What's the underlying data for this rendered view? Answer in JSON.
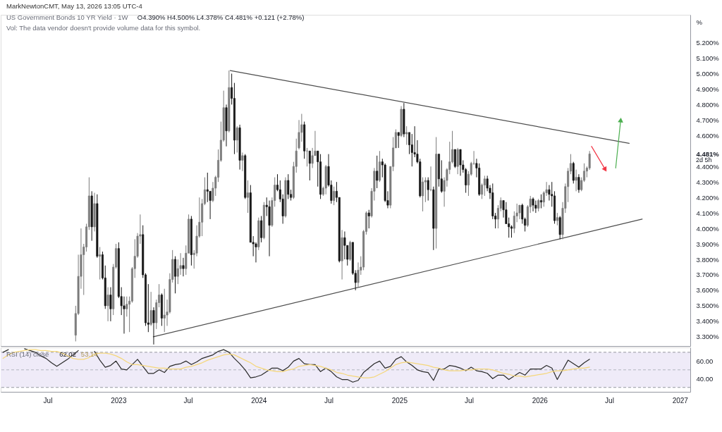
{
  "chart_data": [
    {
      "type": "candlestick",
      "title": "US Government Bonds 10 YR Yield · 1W",
      "ylabel": "%",
      "x": [
        "2022-09-12",
        "2022-09-19",
        "2022-09-26",
        "2022-10-03",
        "2022-10-10",
        "2022-10-17",
        "2022-10-24",
        "2022-10-31",
        "2022-11-07",
        "2022-11-14",
        "2022-11-21",
        "2022-11-28",
        "2022-12-05",
        "2022-12-12",
        "2022-12-19",
        "2022-12-26",
        "2023-01-02",
        "2023-01-09",
        "2023-01-16",
        "2023-01-23",
        "2023-01-30",
        "2023-02-06",
        "2023-02-13",
        "2023-02-20",
        "2023-02-27",
        "2023-03-06",
        "2023-03-13",
        "2023-03-20",
        "2023-03-27",
        "2023-04-03",
        "2023-04-10",
        "2023-04-17",
        "2023-04-24",
        "2023-05-01",
        "2023-05-08",
        "2023-05-15",
        "2023-05-22",
        "2023-05-29",
        "2023-06-05",
        "2023-06-12",
        "2023-06-19",
        "2023-06-26",
        "2023-07-03",
        "2023-07-10",
        "2023-07-17",
        "2023-07-24",
        "2023-07-31",
        "2023-08-07",
        "2023-08-14",
        "2023-08-21",
        "2023-08-28",
        "2023-09-04",
        "2023-09-11",
        "2023-09-18",
        "2023-09-25",
        "2023-10-02",
        "2023-10-09",
        "2023-10-16",
        "2023-10-23",
        "2023-10-30",
        "2023-11-06",
        "2023-11-13",
        "2023-11-20",
        "2023-11-27",
        "2023-12-04",
        "2023-12-11",
        "2023-12-18",
        "2023-12-25",
        "2024-01-01",
        "2024-01-08",
        "2024-01-15",
        "2024-01-22",
        "2024-01-29",
        "2024-02-05",
        "2024-02-12",
        "2024-02-19",
        "2024-02-26",
        "2024-03-04",
        "2024-03-11",
        "2024-03-18",
        "2024-03-25",
        "2024-04-01",
        "2024-04-08",
        "2024-04-15",
        "2024-04-22",
        "2024-04-29",
        "2024-05-06",
        "2024-05-13",
        "2024-05-20",
        "2024-05-27",
        "2024-06-03",
        "2024-06-10",
        "2024-06-17",
        "2024-06-24",
        "2024-07-01",
        "2024-07-08",
        "2024-07-15",
        "2024-07-22",
        "2024-07-29",
        "2024-08-05",
        "2024-08-12",
        "2024-08-19",
        "2024-08-26",
        "2024-09-02",
        "2024-09-09",
        "2024-09-16",
        "2024-09-23",
        "2024-09-30",
        "2024-10-07",
        "2024-10-14",
        "2024-10-21",
        "2024-10-28",
        "2024-11-04",
        "2024-11-11",
        "2024-11-18",
        "2024-11-25",
        "2024-12-02",
        "2024-12-09",
        "2024-12-16",
        "2024-12-23",
        "2024-12-30",
        "2025-01-06",
        "2025-01-13",
        "2025-01-20",
        "2025-01-27",
        "2025-02-03",
        "2025-02-10",
        "2025-02-17",
        "2025-02-24",
        "2025-03-03",
        "2025-03-10",
        "2025-03-17",
        "2025-03-24",
        "2025-03-31",
        "2025-04-07",
        "2025-04-14",
        "2025-04-21",
        "2025-04-28",
        "2025-05-05",
        "2025-05-12",
        "2025-05-19",
        "2025-05-26",
        "2025-06-02",
        "2025-06-09",
        "2025-06-16",
        "2025-06-23",
        "2025-06-30",
        "2025-07-07",
        "2025-07-14",
        "2025-07-21",
        "2025-07-28",
        "2025-08-04",
        "2025-08-11",
        "2025-08-18",
        "2025-08-25",
        "2025-09-01",
        "2025-09-08",
        "2025-09-15",
        "2025-09-22",
        "2025-09-29",
        "2025-10-06",
        "2025-10-13",
        "2025-10-20",
        "2025-10-27",
        "2025-11-03",
        "2025-11-10",
        "2025-11-17",
        "2025-11-24",
        "2025-12-01",
        "2025-12-08",
        "2025-12-15",
        "2025-12-22",
        "2025-12-29",
        "2026-01-05",
        "2026-01-12",
        "2026-01-19",
        "2026-01-26",
        "2026-02-02",
        "2026-02-09",
        "2026-02-16",
        "2026-02-23",
        "2026-03-02",
        "2026-03-09",
        "2026-03-16",
        "2026-03-23",
        "2026-03-30",
        "2026-04-06",
        "2026-04-13",
        "2026-04-20",
        "2026-04-27",
        "2026-05-04",
        "2026-05-11"
      ],
      "ohlc": [
        [
          3.31,
          3.5,
          3.27,
          3.45
        ],
        [
          3.45,
          3.83,
          3.44,
          3.69
        ],
        [
          3.69,
          4.0,
          3.61,
          3.83
        ],
        [
          3.83,
          3.9,
          3.57,
          3.88
        ],
        [
          3.88,
          4.03,
          3.85,
          4.01
        ],
        [
          4.01,
          4.33,
          3.99,
          4.21
        ],
        [
          4.21,
          4.24,
          3.92,
          4.01
        ],
        [
          4.01,
          4.23,
          3.98,
          4.16
        ],
        [
          4.16,
          4.22,
          3.81,
          3.82
        ],
        [
          3.82,
          3.88,
          3.67,
          3.83
        ],
        [
          3.83,
          3.85,
          3.67,
          3.68
        ],
        [
          3.68,
          3.76,
          3.48,
          3.5
        ],
        [
          3.5,
          3.62,
          3.4,
          3.57
        ],
        [
          3.57,
          3.62,
          3.4,
          3.48
        ],
        [
          3.48,
          3.77,
          3.44,
          3.75
        ],
        [
          3.75,
          3.9,
          3.74,
          3.87
        ],
        [
          3.87,
          3.91,
          3.55,
          3.56
        ],
        [
          3.56,
          3.62,
          3.44,
          3.5
        ],
        [
          3.5,
          3.56,
          3.32,
          3.48
        ],
        [
          3.48,
          3.56,
          3.43,
          3.51
        ],
        [
          3.51,
          3.56,
          3.33,
          3.53
        ],
        [
          3.53,
          3.75,
          3.52,
          3.74
        ],
        [
          3.74,
          3.93,
          3.68,
          3.82
        ],
        [
          3.82,
          3.97,
          3.81,
          3.95
        ],
        [
          3.95,
          4.09,
          3.9,
          3.96
        ],
        [
          3.96,
          4.02,
          3.68,
          3.7
        ],
        [
          3.7,
          3.71,
          3.37,
          3.39
        ],
        [
          3.39,
          3.64,
          3.33,
          3.38
        ],
        [
          3.38,
          3.59,
          3.37,
          3.47
        ],
        [
          3.47,
          3.49,
          3.25,
          3.39
        ],
        [
          3.39,
          3.54,
          3.35,
          3.52
        ],
        [
          3.52,
          3.64,
          3.49,
          3.57
        ],
        [
          3.57,
          3.58,
          3.37,
          3.42
        ],
        [
          3.42,
          3.61,
          3.33,
          3.44
        ],
        [
          3.44,
          3.54,
          3.37,
          3.46
        ],
        [
          3.46,
          3.71,
          3.45,
          3.67
        ],
        [
          3.67,
          3.86,
          3.65,
          3.8
        ],
        [
          3.8,
          3.82,
          3.58,
          3.69
        ],
        [
          3.69,
          3.8,
          3.64,
          3.74
        ],
        [
          3.74,
          3.84,
          3.7,
          3.76
        ],
        [
          3.76,
          3.81,
          3.69,
          3.74
        ],
        [
          3.74,
          3.89,
          3.7,
          3.84
        ],
        [
          3.84,
          4.09,
          3.84,
          4.06
        ],
        [
          4.06,
          4.08,
          3.76,
          3.83
        ],
        [
          3.83,
          3.86,
          3.74,
          3.84
        ],
        [
          3.84,
          4.02,
          3.82,
          3.95
        ],
        [
          3.95,
          4.2,
          3.94,
          4.04
        ],
        [
          4.04,
          4.19,
          3.95,
          4.16
        ],
        [
          4.16,
          4.33,
          4.15,
          4.25
        ],
        [
          4.25,
          4.36,
          4.17,
          4.24
        ],
        [
          4.24,
          4.24,
          4.06,
          4.18
        ],
        [
          4.18,
          4.3,
          4.17,
          4.26
        ],
        [
          4.26,
          4.34,
          4.21,
          4.33
        ],
        [
          4.33,
          4.51,
          4.3,
          4.44
        ],
        [
          4.44,
          4.69,
          4.43,
          4.57
        ],
        [
          4.57,
          4.89,
          4.56,
          4.78
        ],
        [
          4.78,
          4.8,
          4.53,
          4.63
        ],
        [
          4.63,
          5.02,
          4.62,
          4.91
        ],
        [
          4.91,
          5.0,
          4.8,
          4.84
        ],
        [
          4.84,
          4.94,
          4.48,
          4.57
        ],
        [
          4.57,
          4.66,
          4.49,
          4.65
        ],
        [
          4.65,
          4.67,
          4.38,
          4.44
        ],
        [
          4.44,
          4.49,
          4.37,
          4.47
        ],
        [
          4.47,
          4.48,
          4.19,
          4.2
        ],
        [
          4.2,
          4.31,
          4.1,
          4.23
        ],
        [
          4.23,
          4.28,
          3.91,
          3.91
        ],
        [
          3.91,
          3.95,
          3.82,
          3.9
        ],
        [
          3.9,
          3.91,
          3.78,
          3.88
        ],
        [
          3.88,
          4.07,
          3.86,
          4.05
        ],
        [
          4.05,
          4.08,
          3.91,
          3.94
        ],
        [
          3.94,
          4.17,
          3.93,
          4.15
        ],
        [
          4.15,
          4.2,
          4.08,
          4.14
        ],
        [
          4.14,
          4.18,
          3.82,
          4.02
        ],
        [
          4.02,
          4.2,
          4.01,
          4.18
        ],
        [
          4.18,
          4.33,
          4.14,
          4.28
        ],
        [
          4.28,
          4.35,
          4.24,
          4.25
        ],
        [
          4.25,
          4.31,
          4.17,
          4.19
        ],
        [
          4.19,
          4.22,
          4.03,
          4.08
        ],
        [
          4.08,
          4.33,
          4.07,
          4.31
        ],
        [
          4.31,
          4.35,
          4.19,
          4.22
        ],
        [
          4.22,
          4.25,
          4.18,
          4.2
        ],
        [
          4.2,
          4.43,
          4.19,
          4.4
        ],
        [
          4.4,
          4.58,
          4.36,
          4.5
        ],
        [
          4.52,
          4.7,
          4.51,
          4.62
        ],
        [
          4.62,
          4.74,
          4.56,
          4.67
        ],
        [
          4.67,
          4.69,
          4.45,
          4.5
        ],
        [
          4.5,
          4.52,
          4.4,
          4.5
        ],
        [
          4.5,
          4.5,
          4.31,
          4.42
        ],
        [
          4.42,
          4.52,
          4.39,
          4.47
        ],
        [
          4.47,
          4.63,
          4.47,
          4.5
        ],
        [
          4.5,
          4.5,
          4.27,
          4.43
        ],
        [
          4.43,
          4.48,
          4.19,
          4.22
        ],
        [
          4.22,
          4.27,
          4.21,
          4.26
        ],
        [
          4.26,
          4.41,
          4.22,
          4.4
        ],
        [
          4.4,
          4.48,
          4.27,
          4.28
        ],
        [
          4.28,
          4.31,
          4.16,
          4.18
        ],
        [
          4.18,
          4.27,
          4.15,
          4.24
        ],
        [
          4.24,
          4.3,
          4.17,
          4.2
        ],
        [
          4.2,
          4.2,
          3.78,
          3.79
        ],
        [
          3.79,
          3.99,
          3.67,
          3.94
        ],
        [
          3.94,
          3.98,
          3.8,
          3.89
        ],
        [
          3.89,
          3.89,
          3.76,
          3.8
        ],
        [
          3.8,
          3.92,
          3.79,
          3.91
        ],
        [
          3.91,
          3.91,
          3.7,
          3.71
        ],
        [
          3.71,
          3.73,
          3.6,
          3.65
        ],
        [
          3.65,
          3.78,
          3.62,
          3.73
        ],
        [
          3.73,
          3.82,
          3.7,
          3.75
        ],
        [
          3.75,
          3.99,
          3.73,
          3.98
        ],
        [
          3.98,
          4.11,
          3.96,
          4.1
        ],
        [
          4.1,
          4.12,
          4.0,
          4.08
        ],
        [
          4.08,
          4.26,
          4.07,
          4.24
        ],
        [
          4.24,
          4.39,
          4.18,
          4.37
        ],
        [
          4.37,
          4.47,
          4.26,
          4.31
        ],
        [
          4.31,
          4.5,
          4.3,
          4.43
        ],
        [
          4.43,
          4.45,
          4.33,
          4.41
        ],
        [
          4.41,
          4.42,
          4.17,
          4.18
        ],
        [
          4.18,
          4.24,
          4.13,
          4.15
        ],
        [
          4.15,
          4.4,
          4.13,
          4.4
        ],
        [
          4.4,
          4.59,
          4.37,
          4.52
        ],
        [
          4.52,
          4.64,
          4.52,
          4.62
        ],
        [
          4.62,
          4.62,
          4.52,
          4.6
        ],
        [
          4.6,
          4.79,
          4.59,
          4.77
        ],
        [
          4.77,
          4.81,
          4.59,
          4.61
        ],
        [
          4.61,
          4.66,
          4.54,
          4.62
        ],
        [
          4.62,
          4.62,
          4.48,
          4.54
        ],
        [
          4.54,
          4.61,
          4.4,
          4.49
        ],
        [
          4.49,
          4.66,
          4.46,
          4.48
        ],
        [
          4.48,
          4.57,
          4.42,
          4.43
        ],
        [
          4.43,
          4.45,
          4.2,
          4.21
        ],
        [
          4.21,
          4.33,
          4.11,
          4.3
        ],
        [
          4.3,
          4.33,
          4.17,
          4.31
        ],
        [
          4.31,
          4.33,
          4.18,
          4.25
        ],
        [
          4.25,
          4.4,
          4.24,
          4.25
        ],
        [
          4.25,
          4.27,
          3.86,
          4.0
        ],
        [
          4.0,
          4.59,
          3.87,
          4.48
        ],
        [
          4.48,
          4.48,
          4.27,
          4.32
        ],
        [
          4.32,
          4.44,
          4.23,
          4.24
        ],
        [
          4.24,
          4.33,
          4.14,
          4.31
        ],
        [
          4.31,
          4.39,
          4.27,
          4.38
        ],
        [
          4.38,
          4.56,
          4.35,
          4.43
        ],
        [
          4.43,
          4.63,
          4.42,
          4.51
        ],
        [
          4.51,
          4.51,
          4.39,
          4.4
        ],
        [
          4.4,
          4.52,
          4.35,
          4.51
        ],
        [
          4.51,
          4.51,
          4.34,
          4.41
        ],
        [
          4.41,
          4.44,
          4.36,
          4.38
        ],
        [
          4.38,
          4.39,
          4.23,
          4.28
        ],
        [
          4.28,
          4.37,
          4.21,
          4.35
        ],
        [
          4.35,
          4.43,
          4.34,
          4.42
        ],
        [
          4.42,
          4.5,
          4.41,
          4.42
        ],
        [
          4.42,
          4.45,
          4.33,
          4.39
        ],
        [
          4.39,
          4.42,
          4.21,
          4.22
        ],
        [
          4.22,
          4.29,
          4.19,
          4.28
        ],
        [
          4.28,
          4.34,
          4.21,
          4.32
        ],
        [
          4.32,
          4.34,
          4.24,
          4.26
        ],
        [
          4.26,
          4.28,
          4.19,
          4.23
        ],
        [
          4.23,
          4.29,
          4.06,
          4.08
        ],
        [
          4.08,
          4.1,
          4.0,
          4.06
        ],
        [
          4.06,
          4.15,
          4.0,
          4.13
        ],
        [
          4.13,
          4.2,
          4.11,
          4.18
        ],
        [
          4.18,
          4.18,
          4.07,
          4.12
        ],
        [
          4.12,
          4.17,
          4.03,
          4.03
        ],
        [
          4.03,
          4.07,
          3.94,
          4.01
        ],
        [
          4.01,
          4.02,
          3.94,
          4.0
        ],
        [
          4.0,
          4.11,
          3.97,
          4.08
        ],
        [
          4.08,
          4.16,
          4.04,
          4.1
        ],
        [
          4.1,
          4.15,
          4.06,
          4.15
        ],
        [
          4.15,
          4.16,
          4.03,
          4.06
        ],
        [
          4.06,
          4.07,
          3.98,
          4.02
        ],
        [
          4.02,
          4.15,
          4.01,
          4.14
        ],
        [
          4.14,
          4.21,
          4.1,
          4.19
        ],
        [
          4.19,
          4.2,
          4.11,
          4.15
        ],
        [
          4.15,
          4.18,
          4.1,
          4.13
        ],
        [
          4.13,
          4.19,
          4.11,
          4.18
        ],
        [
          4.18,
          4.22,
          4.13,
          4.17
        ],
        [
          4.17,
          4.24,
          4.14,
          4.23
        ],
        [
          4.23,
          4.3,
          4.21,
          4.25
        ],
        [
          4.25,
          4.28,
          4.18,
          4.22
        ],
        [
          4.22,
          4.3,
          4.14,
          4.21
        ],
        [
          4.21,
          4.24,
          4.03,
          4.05
        ],
        [
          4.05,
          4.1,
          4.02,
          4.07
        ],
        [
          4.07,
          4.08,
          3.93,
          3.96
        ],
        [
          3.96,
          4.17,
          3.93,
          4.13
        ],
        [
          4.13,
          4.29,
          4.1,
          4.27
        ],
        [
          4.27,
          4.39,
          4.17,
          4.37
        ],
        [
          4.37,
          4.48,
          4.35,
          4.42
        ],
        [
          4.42,
          4.43,
          4.29,
          4.31
        ],
        [
          4.31,
          4.38,
          4.24,
          4.33
        ],
        [
          4.33,
          4.35,
          4.23,
          4.25
        ],
        [
          4.25,
          4.33,
          4.24,
          4.31
        ],
        [
          4.31,
          4.42,
          4.3,
          4.37
        ],
        [
          4.37,
          4.4,
          4.33,
          4.39
        ],
        [
          4.39,
          4.5,
          4.378,
          4.481
        ]
      ],
      "colors": [
        "#7b7b7b",
        "#7b7b7b",
        "#7b7b7b",
        "#7b7b7b",
        "#7b7b7b",
        "#7b7b7b",
        "#161616",
        "#7b7b7b",
        "#161616",
        "#7b7b7b",
        "#161616",
        "#161616",
        "#7b7b7b",
        "#161616",
        "#7b7b7b",
        "#7b7b7b",
        "#161616",
        "#161616",
        "#161616",
        "#7b7b7b",
        "#7b7b7b",
        "#7b7b7b",
        "#7b7b7b",
        "#7b7b7b",
        "#7b7b7b",
        "#161616",
        "#161616",
        "#161616",
        "#7b7b7b",
        "#161616",
        "#7b7b7b",
        "#7b7b7b",
        "#161616",
        "#7b7b7b",
        "#7b7b7b",
        "#7b7b7b",
        "#7b7b7b",
        "#161616",
        "#7b7b7b",
        "#7b7b7b",
        "#161616",
        "#7b7b7b",
        "#7b7b7b",
        "#161616",
        "#7b7b7b",
        "#7b7b7b",
        "#7b7b7b",
        "#7b7b7b",
        "#7b7b7b",
        "#161616",
        "#161616",
        "#7b7b7b",
        "#7b7b7b",
        "#7b7b7b",
        "#7b7b7b",
        "#7b7b7b",
        "#161616",
        "#7b7b7b",
        "#161616",
        "#161616",
        "#7b7b7b",
        "#161616",
        "#7b7b7b",
        "#161616",
        "#7b7b7b",
        "#161616",
        "#161616",
        "#161616",
        "#7b7b7b",
        "#161616",
        "#7b7b7b",
        "#161616",
        "#161616",
        "#7b7b7b",
        "#7b7b7b",
        "#161616",
        "#161616",
        "#161616",
        "#7b7b7b",
        "#161616",
        "#161616",
        "#7b7b7b",
        "#7b7b7b",
        "#7b7b7b",
        "#7b7b7b",
        "#161616",
        "#7b7b7b",
        "#161616",
        "#7b7b7b",
        "#7b7b7b",
        "#161616",
        "#161616",
        "#7b7b7b",
        "#7b7b7b",
        "#161616",
        "#161616",
        "#7b7b7b",
        "#161616",
        "#161616",
        "#7b7b7b",
        "#161616",
        "#161616",
        "#7b7b7b",
        "#161616",
        "#161616",
        "#7b7b7b",
        "#7b7b7b",
        "#7b7b7b",
        "#7b7b7b",
        "#161616",
        "#7b7b7b",
        "#7b7b7b",
        "#161616",
        "#7b7b7b",
        "#161616",
        "#161616",
        "#161616",
        "#7b7b7b",
        "#7b7b7b",
        "#7b7b7b",
        "#161616",
        "#7b7b7b",
        "#161616",
        "#7b7b7b",
        "#161616",
        "#161616",
        "#161616",
        "#161616",
        "#161616",
        "#7b7b7b",
        "#7b7b7b",
        "#161616",
        "#7b7b7b",
        "#161616",
        "#7b7b7b",
        "#161616",
        "#161616",
        "#7b7b7b",
        "#7b7b7b",
        "#7b7b7b",
        "#7b7b7b",
        "#161616",
        "#7b7b7b",
        "#161616",
        "#161616",
        "#161616",
        "#7b7b7b",
        "#7b7b7b",
        "#7b7b7b",
        "#161616",
        "#161616",
        "#7b7b7b",
        "#7b7b7b",
        "#161616",
        "#161616",
        "#161616",
        "#161616",
        "#7b7b7b",
        "#7b7b7b",
        "#161616",
        "#161616",
        "#161616",
        "#161616",
        "#7b7b7b",
        "#7b7b7b",
        "#7b7b7b",
        "#161616",
        "#161616",
        "#7b7b7b",
        "#7b7b7b",
        "#161616",
        "#161616",
        "#7b7b7b",
        "#161616",
        "#7b7b7b",
        "#7b7b7b",
        "#161616",
        "#161616",
        "#161616",
        "#7b7b7b",
        "#161616",
        "#7b7b7b",
        "#7b7b7b",
        "#7b7b7b",
        "#7b7b7b",
        "#161616",
        "#7b7b7b",
        "#161616",
        "#7b7b7b",
        "#7b7b7b",
        "#7b7b7b",
        "#7b7b7b"
      ],
      "series": [
        {
          "type": "line",
          "color": "#4d4d4d",
          "x": [
            "2023-10-19",
            "2026-08-22"
          ],
          "values": [
            5.02,
            4.55
          ]
        },
        {
          "type": "line",
          "color": "#4d4d4d",
          "x": [
            "2023-04-02",
            "2026-09-25"
          ],
          "values": [
            3.3,
            4.06
          ]
        },
        {
          "type": "line",
          "color": "#f23645",
          "marker": "triangle",
          "x": [
            "2026-05-16",
            "2026-06-21"
          ],
          "values": [
            4.53,
            4.38
          ]
        },
        {
          "type": "line",
          "color": "#4caf50",
          "marker": "triangle",
          "x": [
            "2026-07-18",
            "2026-07-31"
          ],
          "values": [
            4.39,
            4.7
          ]
        }
      ],
      "xlim": [
        "2022-03-01",
        "2027-01-28"
      ],
      "ylim": [
        3.24,
        5.38
      ],
      "yticks": [
        {
          "value": 3.3,
          "label": "3.300%"
        },
        {
          "value": 3.4,
          "label": "3.400%"
        },
        {
          "value": 3.5,
          "label": "3.500%"
        },
        {
          "value": 3.6,
          "label": "3.600%"
        },
        {
          "value": 3.7,
          "label": "3.700%"
        },
        {
          "value": 3.8,
          "label": "3.800%"
        },
        {
          "value": 3.9,
          "label": "3.900%"
        },
        {
          "value": 4.0,
          "label": "4.000%"
        },
        {
          "value": 4.1,
          "label": "4.100%"
        },
        {
          "value": 4.2,
          "label": "4.200%"
        },
        {
          "value": 4.3,
          "label": "4.300%"
        },
        {
          "value": 4.4,
          "label": "4.400%"
        },
        {
          "value": 4.481,
          "label": "4.481%"
        },
        {
          "value": 4.6,
          "label": "4.600%"
        },
        {
          "value": 4.7,
          "label": "4.700%"
        },
        {
          "value": 4.8,
          "label": "4.800%"
        },
        {
          "value": 4.9,
          "label": "4.900%"
        },
        {
          "value": 5.0,
          "label": "5.000%"
        },
        {
          "value": 5.1,
          "label": "5.100%"
        },
        {
          "value": 5.2,
          "label": "5.200%"
        }
      ],
      "tick_labels": "y",
      "annotations": [
        "MarkNewtonCMT, May 13, 2026 13:05 UTC-4",
        "O4.390% H4.500% L4.378% C4.481% +0.121 (+2.78%)",
        "Vol: The data vendor doesn't provide volume data for this symbol.",
        "2d 5h"
      ]
    },
    {
      "type": "line",
      "title": "RSI (14) close",
      "x": [
        "2022-03-07",
        "2022-03-21",
        "2022-04-04",
        "2022-04-18",
        "2022-05-02",
        "2022-05-16",
        "2022-05-30",
        "2022-06-13",
        "2022-06-27",
        "2022-07-11",
        "2022-07-25",
        "2022-08-08",
        "2022-08-22",
        "2022-09-05",
        "2022-09-19",
        "2022-10-03",
        "2022-10-17",
        "2022-10-31",
        "2022-11-14",
        "2022-11-28",
        "2022-12-12",
        "2022-12-26",
        "2023-01-09",
        "2023-01-23",
        "2023-02-06",
        "2023-02-20",
        "2023-03-06",
        "2023-03-20",
        "2023-04-03",
        "2023-04-17",
        "2023-05-01",
        "2023-05-15",
        "2023-05-29",
        "2023-06-12",
        "2023-06-26",
        "2023-07-10",
        "2023-07-24",
        "2023-08-07",
        "2023-08-21",
        "2023-09-04",
        "2023-09-18",
        "2023-10-02",
        "2023-10-16",
        "2023-10-30",
        "2023-11-13",
        "2023-11-27",
        "2023-12-11",
        "2023-12-25",
        "2024-01-08",
        "2024-01-22",
        "2024-02-05",
        "2024-02-19",
        "2024-03-04",
        "2024-03-18",
        "2024-04-01",
        "2024-04-15",
        "2024-04-29",
        "2024-05-13",
        "2024-05-27",
        "2024-06-10",
        "2024-06-24",
        "2024-07-08",
        "2024-07-22",
        "2024-08-05",
        "2024-08-19",
        "2024-09-02",
        "2024-09-16",
        "2024-09-30",
        "2024-10-14",
        "2024-10-28",
        "2024-11-11",
        "2024-11-25",
        "2024-12-09",
        "2024-12-23",
        "2025-01-06",
        "2025-01-20",
        "2025-02-03",
        "2025-02-17",
        "2025-03-03",
        "2025-03-17",
        "2025-03-31",
        "2025-04-14",
        "2025-04-28",
        "2025-05-12",
        "2025-05-26",
        "2025-06-09",
        "2025-06-23",
        "2025-07-07",
        "2025-07-21",
        "2025-08-04",
        "2025-08-18",
        "2025-09-01",
        "2025-09-15",
        "2025-09-29",
        "2025-10-13",
        "2025-10-27",
        "2025-11-10",
        "2025-11-24",
        "2025-12-08",
        "2025-12-22",
        "2026-01-05",
        "2026-01-19",
        "2026-02-02",
        "2026-02-16",
        "2026-03-02",
        "2026-03-16",
        "2026-03-30",
        "2026-04-13",
        "2026-04-27",
        "2026-05-11"
      ],
      "series": [
        {
          "color": "#2a2a2a",
          "values": [
            70,
            73,
            null,
            null,
            74,
            72,
            70,
            66,
            63,
            58,
            54,
            58,
            62,
            67,
            72,
            null,
            null,
            71,
            61,
            53,
            55,
            60,
            51,
            50,
            56,
            62,
            54,
            46,
            46,
            50,
            47,
            54,
            56,
            57,
            60,
            56,
            59,
            63,
            65,
            67,
            71,
            73,
            70,
            63,
            57,
            50,
            41,
            42,
            44,
            48,
            52,
            52,
            49,
            53,
            60,
            63,
            57,
            56,
            56,
            48,
            52,
            48,
            42,
            39,
            39,
            36,
            38,
            47,
            52,
            57,
            60,
            52,
            54,
            62,
            65,
            59,
            55,
            50,
            48,
            47,
            38,
            51,
            51,
            55,
            54,
            52,
            49,
            53,
            49,
            48,
            46,
            40,
            44,
            44,
            39,
            43,
            47,
            44,
            51,
            51,
            51,
            55,
            52,
            39,
            50,
            61,
            57,
            53,
            58,
            62.02
          ]
        },
        {
          "color": "#f5d77a",
          "values": [
            63,
            67,
            70,
            71,
            72,
            73,
            73,
            72,
            72,
            71,
            71,
            69,
            66,
            63,
            62,
            62,
            64,
            68,
            69,
            69,
            68,
            66,
            63,
            59,
            56,
            56,
            55,
            54,
            53,
            52,
            52,
            51,
            51,
            51,
            53,
            54,
            56,
            58,
            61,
            63,
            65,
            67,
            68,
            67,
            64,
            61,
            58,
            54,
            52,
            50,
            49,
            48,
            48,
            50,
            51,
            54,
            55,
            56,
            55,
            54,
            52,
            50,
            47,
            46,
            44,
            43,
            42,
            41,
            41,
            42,
            45,
            48,
            52,
            56,
            58,
            59,
            58,
            57,
            56,
            55,
            53,
            52,
            50,
            49,
            49,
            49,
            50,
            50,
            51,
            51,
            51,
            50,
            48,
            46,
            45,
            43,
            43,
            42,
            43,
            44,
            45,
            46,
            48,
            49,
            49,
            50,
            51,
            52,
            52,
            53.14
          ]
        }
      ],
      "xlim": [
        "2022-03-01",
        "2027-01-28"
      ],
      "xticks": [
        {
          "value": "2022-07-01",
          "label": "Jul"
        },
        {
          "value": "2023-01-01",
          "label": "2023"
        },
        {
          "value": "2023-07-01",
          "label": "Jul"
        },
        {
          "value": "2024-01-01",
          "label": "2024"
        },
        {
          "value": "2024-07-01",
          "label": "Jul"
        },
        {
          "value": "2025-01-01",
          "label": "2025"
        },
        {
          "value": "2025-07-01",
          "label": "Jul"
        },
        {
          "value": "2026-01-01",
          "label": "2026"
        },
        {
          "value": "2026-07-01",
          "label": "Jul"
        },
        {
          "value": "2027-01-01",
          "label": "2027"
        }
      ],
      "ylim": [
        25,
        75.5
      ],
      "yticks": [
        {
          "value": 40,
          "label": "40.00"
        },
        {
          "value": 60,
          "label": "60.00"
        }
      ],
      "ref_lines": [
        {
          "axis": "y",
          "value": 70,
          "color": "#9598a1",
          "line_style": "dashed"
        },
        {
          "axis": "y",
          "value": 50,
          "color": "#b2b5be",
          "line_style": "dashed"
        },
        {
          "axis": "y",
          "value": 30,
          "color": "#9598a1",
          "line_style": "dashed"
        }
      ],
      "bands": [
        {
          "axis": "y",
          "from": 30,
          "to": 70,
          "color": "#efebf8"
        }
      ],
      "annotations": [
        "62.02",
        "53.14"
      ]
    }
  ]
}
